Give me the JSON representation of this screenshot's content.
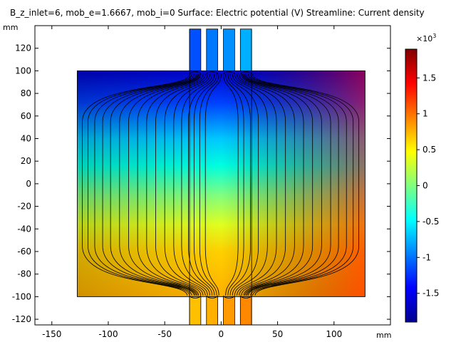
{
  "chart_data": {
    "type": "heatmap",
    "title": "B_z_inlet=6, mob_e=1.6667, mob_i=0   Surface: Electric potential (V)  Streamline: Current density",
    "xlabel": "mm",
    "ylabel": "mm",
    "xlim": [
      -165,
      150
    ],
    "ylim": [
      -125,
      140
    ],
    "x_ticks": [
      -150,
      -100,
      -50,
      0,
      50,
      100
    ],
    "y_ticks": [
      -120,
      -100,
      -80,
      -60,
      -40,
      -20,
      0,
      20,
      40,
      60,
      80,
      100,
      120
    ],
    "domain": {
      "main_rect": {
        "x": [
          -127.5,
          127.5
        ],
        "y": [
          -100,
          100
        ]
      },
      "electrodes_x": [
        [
          -28,
          -18
        ],
        [
          -13,
          -3
        ],
        [
          2,
          12
        ],
        [
          17,
          27
        ]
      ],
      "electrode_y_top": [
        100,
        137
      ],
      "electrode_y_bottom": [
        -125,
        -100
      ]
    },
    "colorbar": {
      "exponent_label": "×10",
      "exponent_power": "3",
      "ticks": [
        "1.5",
        "1",
        "0.5",
        "0",
        "-0.5",
        "-1",
        "-1.5"
      ],
      "tick_values": [
        1.5,
        1,
        0.5,
        0,
        -0.5,
        -1,
        -1.5
      ],
      "range": [
        -1.9,
        1.9
      ],
      "colormap": "jet"
    },
    "surface_range_in_domain": [
      -1.6,
      1.6
    ],
    "streamline_color": "#000000",
    "grid": false
  }
}
